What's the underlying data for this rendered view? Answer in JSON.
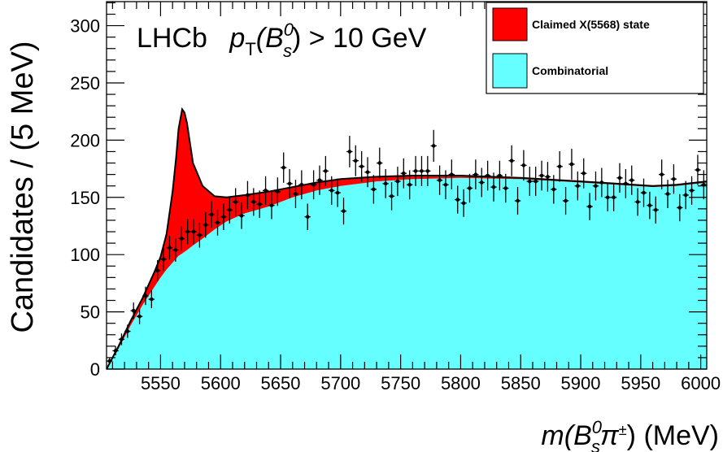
{
  "chart_data": {
    "type": "histogram-fit",
    "title_parts": {
      "experiment": "LHCb",
      "p": "p",
      "T": "T",
      "open": "(B",
      "sup": "0",
      "sub": "s",
      "close": ") > 10 GeV"
    },
    "xlabel_parts": {
      "m": "m(B",
      "sup": "0",
      "sub": "s",
      "pi": "π",
      "pm": "±",
      "rest": ") (MeV)"
    },
    "ylabel": "Candidates / (5 MeV)",
    "xlim": [
      5505,
      6005
    ],
    "ylim": [
      0,
      321
    ],
    "xticks": [
      5550,
      5600,
      5650,
      5700,
      5750,
      5800,
      5850,
      5900,
      5950,
      6000
    ],
    "yticks": [
      0,
      50,
      100,
      150,
      200,
      250,
      300
    ],
    "bin_width": 5,
    "bin_start": 5505,
    "counts": [
      7,
      16,
      26,
      33,
      51,
      46,
      64,
      61,
      86,
      96,
      106,
      104,
      114,
      120,
      120,
      117,
      126,
      135,
      128,
      133,
      139,
      146,
      134,
      152,
      146,
      144,
      156,
      143,
      155,
      176,
      162,
      153,
      161,
      133,
      161,
      165,
      173,
      156,
      154,
      138,
      190,
      182,
      177,
      172,
      157,
      180,
      162,
      151,
      164,
      171,
      161,
      173,
      173,
      173,
      195,
      165,
      161,
      170,
      148,
      145,
      158,
      170,
      163,
      169,
      159,
      169,
      158,
      182,
      147,
      178,
      164,
      164,
      169,
      168,
      157,
      177,
      147,
      179,
      160,
      171,
      142,
      160,
      163,
      150,
      150,
      167,
      162,
      165,
      146,
      154,
      143,
      139,
      170,
      153,
      166,
      141,
      152,
      156,
      174,
      161
    ],
    "fit_background": [
      [
        5505,
        0
      ],
      [
        5515,
        18
      ],
      [
        5525,
        38
      ],
      [
        5535,
        56
      ],
      [
        5545,
        72
      ],
      [
        5550,
        80
      ],
      [
        5555,
        87
      ],
      [
        5560,
        93
      ],
      [
        5565,
        99
      ],
      [
        5568,
        101
      ],
      [
        5572,
        104
      ],
      [
        5577,
        108
      ],
      [
        5585,
        114
      ],
      [
        5595,
        122
      ],
      [
        5605,
        129
      ],
      [
        5620,
        136
      ],
      [
        5640,
        142
      ],
      [
        5660,
        150
      ],
      [
        5680,
        156
      ],
      [
        5700,
        160
      ],
      [
        5730,
        164
      ],
      [
        5760,
        166
      ],
      [
        5800,
        167
      ],
      [
        5850,
        166
      ],
      [
        5900,
        163
      ],
      [
        5930,
        161
      ],
      [
        5960,
        159
      ],
      [
        5980,
        160
      ],
      [
        6005,
        163
      ]
    ],
    "fit_total": [
      [
        5505,
        0
      ],
      [
        5515,
        20
      ],
      [
        5525,
        42
      ],
      [
        5535,
        62
      ],
      [
        5545,
        85
      ],
      [
        5550,
        98
      ],
      [
        5555,
        118
      ],
      [
        5560,
        155
      ],
      [
        5563,
        185
      ],
      [
        5565,
        210
      ],
      [
        5568,
        227
      ],
      [
        5570,
        224
      ],
      [
        5572,
        215
      ],
      [
        5577,
        180
      ],
      [
        5585,
        160
      ],
      [
        5595,
        151
      ],
      [
        5605,
        150
      ],
      [
        5620,
        152
      ],
      [
        5640,
        155
      ],
      [
        5660,
        159
      ],
      [
        5680,
        163
      ],
      [
        5700,
        166
      ],
      [
        5730,
        168
      ],
      [
        5760,
        169
      ],
      [
        5800,
        169
      ],
      [
        5850,
        167
      ],
      [
        5900,
        164
      ],
      [
        5930,
        162
      ],
      [
        5960,
        160
      ],
      [
        5980,
        161
      ],
      [
        6005,
        164
      ]
    ],
    "legend": {
      "position": "top-right",
      "entries": [
        {
          "label": "Claimed X(5568) state",
          "color": "#ff0000"
        },
        {
          "label": "Combinatorial",
          "color": "#66ffff"
        }
      ]
    },
    "colors": {
      "signal": "#ff0000",
      "background": "#66ffff",
      "fit_line": "#000000"
    }
  }
}
